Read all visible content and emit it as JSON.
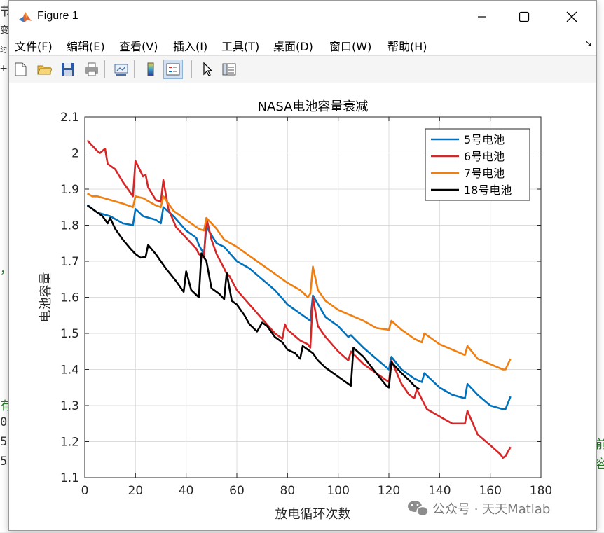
{
  "window": {
    "title": "Figure 1",
    "buttons": [
      "minimize",
      "maximize",
      "close"
    ]
  },
  "menu": {
    "items": [
      "文件(F)",
      "编辑(E)",
      "查看(V)",
      "插入(I)",
      "工具(T)",
      "桌面(D)",
      "窗口(W)",
      "帮助(H)"
    ],
    "dock_arrow": "↘"
  },
  "toolbar": {
    "icons": [
      "new-figure-icon",
      "open-file-icon",
      "save-icon",
      "print-icon",
      "link-plot-icon",
      "colorbar-icon",
      "legend-icon",
      "pointer-icon",
      "property-inspector-icon"
    ]
  },
  "background": {
    "left_glyphs": [
      "节",
      "变",
      "约",
      "+",
      "，",
      "有",
      "0",
      "5",
      "5"
    ],
    "right_glyphs": [
      "前",
      "容"
    ]
  },
  "watermark": {
    "text": "公众号 · 天天Matlab"
  },
  "chart_data": {
    "type": "line",
    "title": "NASA电池容量衰减",
    "xlabel": "放电循环次数",
    "ylabel": "电池容量",
    "xlim": [
      0,
      180
    ],
    "ylim": [
      1.1,
      2.1
    ],
    "xticks": [
      0,
      20,
      40,
      60,
      80,
      100,
      120,
      140,
      160,
      180
    ],
    "yticks": [
      1.1,
      1.2,
      1.3,
      1.4,
      1.5,
      1.6,
      1.7,
      1.8,
      1.9,
      2.0,
      2.1
    ],
    "grid": true,
    "legend_position": "top-right",
    "series": [
      {
        "name": "5号电池",
        "color": "#0072BD",
        "x": [
          1,
          5,
          10,
          15,
          19,
          20,
          23,
          28,
          30,
          31,
          35,
          40,
          44,
          45,
          47,
          48,
          52,
          55,
          60,
          65,
          70,
          75,
          80,
          85,
          88,
          89,
          90,
          95,
          100,
          104,
          105,
          110,
          115,
          120,
          121,
          125,
          130,
          133,
          134,
          140,
          145,
          150,
          151,
          155,
          160,
          165,
          166,
          168
        ],
        "values": [
          1.856,
          1.835,
          1.825,
          1.805,
          1.8,
          1.845,
          1.825,
          1.815,
          1.805,
          1.85,
          1.825,
          1.785,
          1.765,
          1.745,
          1.72,
          1.795,
          1.75,
          1.74,
          1.7,
          1.68,
          1.65,
          1.62,
          1.58,
          1.555,
          1.54,
          1.535,
          1.605,
          1.545,
          1.52,
          1.49,
          1.495,
          1.46,
          1.43,
          1.4,
          1.435,
          1.4,
          1.375,
          1.365,
          1.39,
          1.35,
          1.33,
          1.32,
          1.36,
          1.33,
          1.3,
          1.29,
          1.29,
          1.325
        ]
      },
      {
        "name": "6号电池",
        "color": "#D62728",
        "x": [
          1,
          3,
          5,
          6,
          8,
          9,
          12,
          15,
          19,
          20,
          23,
          24,
          25,
          28,
          30,
          31,
          33,
          36,
          40,
          44,
          45,
          47,
          48,
          50,
          52,
          55,
          56,
          57,
          60,
          65,
          70,
          75,
          78,
          79,
          80,
          85,
          88,
          89,
          90,
          92,
          95,
          100,
          104,
          105,
          110,
          115,
          120,
          121,
          125,
          128,
          130,
          131,
          135,
          140,
          145,
          150,
          151,
          155,
          160,
          164,
          165,
          166,
          168
        ],
        "values": [
          2.035,
          2.02,
          2.005,
          2.0,
          2.012,
          1.97,
          1.955,
          1.92,
          1.88,
          1.978,
          1.935,
          1.94,
          1.905,
          1.87,
          1.865,
          1.925,
          1.845,
          1.795,
          1.765,
          1.735,
          1.72,
          1.71,
          1.82,
          1.76,
          1.72,
          1.68,
          1.665,
          1.66,
          1.62,
          1.58,
          1.54,
          1.5,
          1.485,
          1.525,
          1.51,
          1.48,
          1.47,
          1.46,
          1.6,
          1.52,
          1.49,
          1.45,
          1.425,
          1.45,
          1.415,
          1.39,
          1.365,
          1.425,
          1.36,
          1.33,
          1.32,
          1.345,
          1.29,
          1.27,
          1.25,
          1.25,
          1.285,
          1.22,
          1.19,
          1.165,
          1.155,
          1.16,
          1.185
        ]
      },
      {
        "name": "7号电池",
        "color": "#EE7F10",
        "x": [
          1,
          3,
          5,
          10,
          15,
          19,
          20,
          23,
          28,
          30,
          31,
          35,
          40,
          45,
          47,
          48,
          52,
          55,
          60,
          65,
          70,
          75,
          80,
          85,
          88,
          89,
          90,
          92,
          95,
          100,
          105,
          110,
          115,
          120,
          121,
          125,
          130,
          133,
          134,
          140,
          145,
          150,
          151,
          155,
          160,
          165,
          166,
          168
        ],
        "values": [
          1.888,
          1.88,
          1.88,
          1.87,
          1.86,
          1.85,
          1.88,
          1.875,
          1.855,
          1.85,
          1.88,
          1.84,
          1.815,
          1.79,
          1.785,
          1.82,
          1.79,
          1.76,
          1.74,
          1.715,
          1.69,
          1.665,
          1.64,
          1.62,
          1.6,
          1.61,
          1.685,
          1.62,
          1.59,
          1.565,
          1.55,
          1.535,
          1.515,
          1.51,
          1.535,
          1.51,
          1.485,
          1.475,
          1.5,
          1.47,
          1.455,
          1.44,
          1.465,
          1.43,
          1.415,
          1.4,
          1.4,
          1.43
        ]
      },
      {
        "name": "18号电池",
        "color": "#000000",
        "x": [
          1,
          4,
          7,
          9,
          10,
          12,
          15,
          18,
          20,
          22,
          24,
          25,
          28,
          32,
          36,
          39,
          40,
          42,
          45,
          46,
          48,
          50,
          53,
          55,
          56,
          58,
          60,
          63,
          65,
          68,
          70,
          72,
          75,
          78,
          80,
          83,
          85,
          86,
          88,
          90,
          92,
          95,
          100,
          104,
          105,
          106,
          110,
          115,
          119,
          120,
          121,
          125,
          128,
          130,
          132
        ],
        "values": [
          1.855,
          1.84,
          1.825,
          1.805,
          1.82,
          1.79,
          1.76,
          1.735,
          1.72,
          1.71,
          1.712,
          1.745,
          1.72,
          1.68,
          1.645,
          1.615,
          1.672,
          1.62,
          1.6,
          1.722,
          1.7,
          1.625,
          1.61,
          1.595,
          1.668,
          1.59,
          1.58,
          1.55,
          1.525,
          1.505,
          1.53,
          1.52,
          1.49,
          1.475,
          1.455,
          1.445,
          1.43,
          1.465,
          1.455,
          1.445,
          1.425,
          1.405,
          1.38,
          1.36,
          1.355,
          1.46,
          1.435,
          1.39,
          1.355,
          1.35,
          1.42,
          1.39,
          1.37,
          1.355,
          1.345
        ]
      }
    ]
  }
}
